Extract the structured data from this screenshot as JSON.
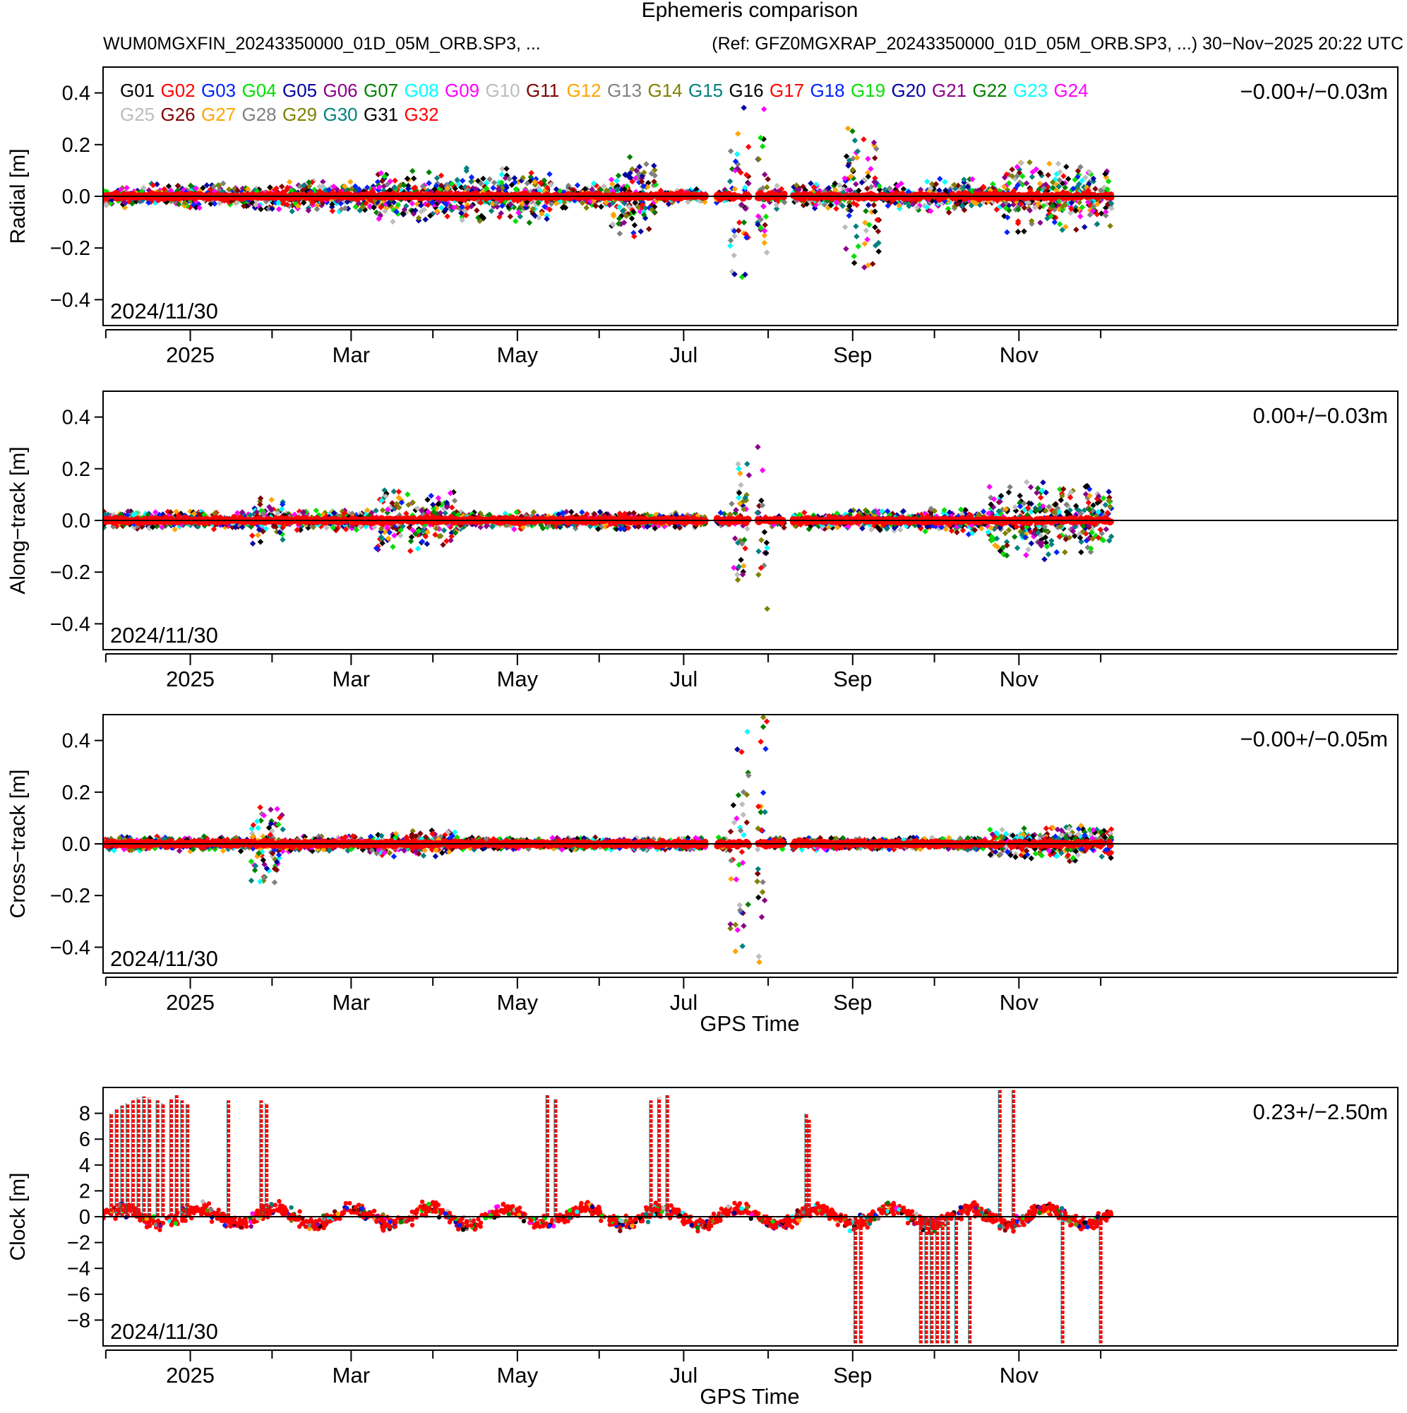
{
  "header": {
    "title": "Ephemeris comparison",
    "file_left": "WUM0MGXFIN_20243350000_01D_05M_ORB.SP3, ...",
    "file_right": "(Ref: GFZ0MGXRAP_20243350000_01D_05M_ORB.SP3, ...) 30−Nov−2025 20:22 UTC"
  },
  "legend": [
    {
      "name": "G01",
      "color": "#000000"
    },
    {
      "name": "G02",
      "color": "#ff0000"
    },
    {
      "name": "G03",
      "color": "#0022ff"
    },
    {
      "name": "G04",
      "color": "#00e000"
    },
    {
      "name": "G05",
      "color": "#0000a0"
    },
    {
      "name": "G06",
      "color": "#8b008b"
    },
    {
      "name": "G07",
      "color": "#008000"
    },
    {
      "name": "G08",
      "color": "#00ffff"
    },
    {
      "name": "G09",
      "color": "#ff00ff"
    },
    {
      "name": "G10",
      "color": "#bdbdbd"
    },
    {
      "name": "G11",
      "color": "#800000"
    },
    {
      "name": "G12",
      "color": "#ffa500"
    },
    {
      "name": "G13",
      "color": "#808080"
    },
    {
      "name": "G14",
      "color": "#808000"
    },
    {
      "name": "G15",
      "color": "#008080"
    },
    {
      "name": "G16",
      "color": "#000000"
    },
    {
      "name": "G17",
      "color": "#ff0000"
    },
    {
      "name": "G18",
      "color": "#0022ff"
    },
    {
      "name": "G19",
      "color": "#00e000"
    },
    {
      "name": "G20",
      "color": "#0000a0"
    },
    {
      "name": "G21",
      "color": "#8b008b"
    },
    {
      "name": "G22",
      "color": "#008000"
    },
    {
      "name": "G23",
      "color": "#00ffff"
    },
    {
      "name": "G24",
      "color": "#ff00ff"
    },
    {
      "name": "G25",
      "color": "#bdbdbd"
    },
    {
      "name": "G26",
      "color": "#800000"
    },
    {
      "name": "G27",
      "color": "#ffa500"
    },
    {
      "name": "G28",
      "color": "#808080"
    },
    {
      "name": "G29",
      "color": "#808000"
    },
    {
      "name": "G30",
      "color": "#008080"
    },
    {
      "name": "G31",
      "color": "#000000"
    },
    {
      "name": "G32",
      "color": "#ff0000"
    }
  ],
  "chart_data": [
    {
      "type": "scatter",
      "ylabel": "Radial [m]",
      "ylim": [
        -0.5,
        0.5
      ],
      "yticks": [
        -0.4,
        -0.2,
        0.0,
        0.2,
        0.4
      ],
      "ytick_labels": [
        "−0.4",
        "−0.2",
        "0.0",
        "0.2",
        "0.4"
      ],
      "stats": "−0.00+/−0.03m",
      "date_label": "2024/11/30",
      "xlabel": "",
      "bursts": [
        {
          "a": 0,
          "b": 57,
          "s": 0.045
        },
        {
          "a": 57,
          "b": 100,
          "s": 0.06
        },
        {
          "a": 100,
          "b": 130,
          "s": 0.1
        },
        {
          "a": 130,
          "b": 165,
          "s": 0.11
        },
        {
          "a": 145,
          "b": 160,
          "s": 0.04
        },
        {
          "a": 166,
          "b": 203,
          "s": 0.05
        },
        {
          "a": 186,
          "b": 203,
          "s": 0.16
        },
        {
          "a": 204,
          "b": 230,
          "s": 0.03
        },
        {
          "a": 230,
          "b": 244,
          "s": 0.35
        },
        {
          "a": 247,
          "b": 272,
          "s": 0.05
        },
        {
          "a": 272,
          "b": 285,
          "s": 0.3
        },
        {
          "a": 286,
          "b": 300,
          "s": 0.05
        },
        {
          "a": 301,
          "b": 320,
          "s": 0.07
        },
        {
          "a": 320,
          "b": 346,
          "s": 0.05
        },
        {
          "a": 330,
          "b": 346,
          "s": 0.14
        },
        {
          "a": 346,
          "b": 370,
          "s": 0.13
        }
      ],
      "gaps": [
        [
          221,
          225
        ],
        [
          237,
          240
        ],
        [
          250,
          253
        ]
      ]
    },
    {
      "type": "scatter",
      "ylabel": "Along−track [m]",
      "ylim": [
        -0.5,
        0.5
      ],
      "yticks": [
        -0.4,
        -0.2,
        0.0,
        0.2,
        0.4
      ],
      "ytick_labels": [
        "−0.4",
        "−0.2",
        "0.0",
        "0.2",
        "0.4"
      ],
      "stats": "0.00+/−0.03m",
      "date_label": "2024/11/30",
      "xlabel": "",
      "bursts": [
        {
          "a": 0,
          "b": 57,
          "s": 0.035
        },
        {
          "a": 54,
          "b": 66,
          "s": 0.09
        },
        {
          "a": 66,
          "b": 100,
          "s": 0.04
        },
        {
          "a": 100,
          "b": 130,
          "s": 0.12
        },
        {
          "a": 130,
          "b": 203,
          "s": 0.035
        },
        {
          "a": 204,
          "b": 230,
          "s": 0.03
        },
        {
          "a": 230,
          "b": 244,
          "s": 0.35
        },
        {
          "a": 247,
          "b": 272,
          "s": 0.035
        },
        {
          "a": 272,
          "b": 300,
          "s": 0.04
        },
        {
          "a": 300,
          "b": 320,
          "s": 0.05
        },
        {
          "a": 320,
          "b": 346,
          "s": 0.05
        },
        {
          "a": 325,
          "b": 346,
          "s": 0.16
        },
        {
          "a": 346,
          "b": 370,
          "s": 0.14
        }
      ],
      "gaps": [
        [
          221,
          225
        ],
        [
          237,
          240
        ],
        [
          250,
          253
        ]
      ]
    },
    {
      "type": "scatter",
      "ylabel": "Cross−track [m]",
      "ylim": [
        -0.5,
        0.5
      ],
      "yticks": [
        -0.4,
        -0.2,
        0.0,
        0.2,
        0.4
      ],
      "ytick_labels": [
        "−0.4",
        "−0.2",
        "0.0",
        "0.2",
        "0.4"
      ],
      "stats": "−0.00+/−0.05m",
      "date_label": "2024/11/30",
      "xlabel": "GPS Time",
      "bursts": [
        {
          "a": 0,
          "b": 54,
          "s": 0.03
        },
        {
          "a": 54,
          "b": 66,
          "s": 0.15
        },
        {
          "a": 66,
          "b": 100,
          "s": 0.03
        },
        {
          "a": 100,
          "b": 130,
          "s": 0.05
        },
        {
          "a": 130,
          "b": 203,
          "s": 0.025
        },
        {
          "a": 204,
          "b": 230,
          "s": 0.025
        },
        {
          "a": 230,
          "b": 244,
          "s": 0.5
        },
        {
          "a": 247,
          "b": 272,
          "s": 0.025
        },
        {
          "a": 272,
          "b": 300,
          "s": 0.025
        },
        {
          "a": 300,
          "b": 320,
          "s": 0.025
        },
        {
          "a": 325,
          "b": 346,
          "s": 0.06
        },
        {
          "a": 346,
          "b": 370,
          "s": 0.07
        }
      ],
      "gaps": [
        [
          221,
          225
        ],
        [
          237,
          240
        ],
        [
          250,
          253
        ]
      ]
    },
    {
      "type": "line",
      "ylabel": "Clock [m]",
      "ylim": [
        -10,
        10
      ],
      "yticks": [
        -8,
        -6,
        -4,
        -2,
        0,
        2,
        4,
        6,
        8
      ],
      "ytick_labels": [
        "−8",
        "−6",
        "−4",
        "−2",
        "0",
        "2",
        "4",
        "6",
        "8"
      ],
      "stats": "0.23+/−2.50m",
      "date_label": "2024/11/30",
      "xlabel": "GPS Time",
      "baseline_ranges": [
        [
          0,
          370
        ]
      ],
      "spikes": [
        {
          "d": 3,
          "v": 8
        },
        {
          "d": 5,
          "v": 8.3
        },
        {
          "d": 7,
          "v": 8.6
        },
        {
          "d": 9,
          "v": 8.8
        },
        {
          "d": 11,
          "v": 9
        },
        {
          "d": 13,
          "v": 9.2
        },
        {
          "d": 15,
          "v": 9.3
        },
        {
          "d": 17,
          "v": 9.2
        },
        {
          "d": 20,
          "v": 9
        },
        {
          "d": 22,
          "v": 8.8
        },
        {
          "d": 25,
          "v": 9.1
        },
        {
          "d": 27,
          "v": 9.4
        },
        {
          "d": 29,
          "v": 9
        },
        {
          "d": 31,
          "v": 8.7
        },
        {
          "d": 46,
          "v": 9
        },
        {
          "d": 58,
          "v": 9
        },
        {
          "d": 60,
          "v": 8.8
        },
        {
          "d": 163,
          "v": 9.4
        },
        {
          "d": 166,
          "v": 9.1
        },
        {
          "d": 201,
          "v": 9
        },
        {
          "d": 204,
          "v": 9.2
        },
        {
          "d": 207,
          "v": 9.4
        },
        {
          "d": 258,
          "v": 8
        },
        {
          "d": 259,
          "v": 7.5
        },
        {
          "d": 329,
          "v": 9.8
        },
        {
          "d": 334,
          "v": 9.8
        },
        {
          "d": 276,
          "v": -9.8
        },
        {
          "d": 278,
          "v": -9.8
        },
        {
          "d": 300,
          "v": -9.8
        },
        {
          "d": 302,
          "v": -9.8
        },
        {
          "d": 304,
          "v": -9.8
        },
        {
          "d": 306,
          "v": -9.8
        },
        {
          "d": 308,
          "v": -9.8
        },
        {
          "d": 310,
          "v": -9.8
        },
        {
          "d": 313,
          "v": -9.8
        },
        {
          "d": 318,
          "v": -9.8
        },
        {
          "d": 352,
          "v": -9.8
        },
        {
          "d": 366,
          "v": -9.8
        }
      ]
    }
  ],
  "x_axis": {
    "start_date": "2024-11-30",
    "days_span": 475,
    "major_ticks": [
      {
        "label": "2025",
        "day": 32
      },
      {
        "label": "Mar",
        "day": 91
      },
      {
        "label": "May",
        "day": 152
      },
      {
        "label": "Jul",
        "day": 213
      },
      {
        "label": "Sep",
        "day": 275
      },
      {
        "label": "Nov",
        "day": 336
      }
    ],
    "minor_ticks": [
      1,
      62,
      121,
      182,
      244,
      305,
      366
    ]
  }
}
